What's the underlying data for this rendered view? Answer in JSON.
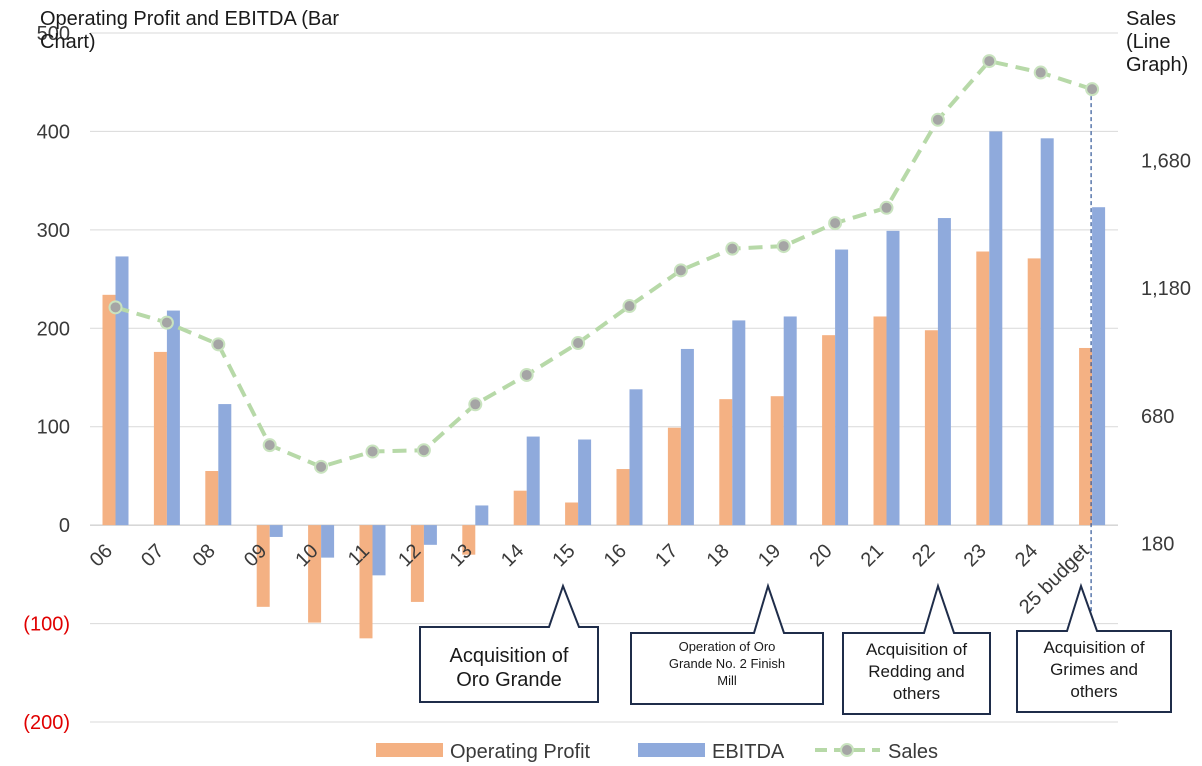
{
  "chart_data": {
    "type": "bar",
    "title_left": "Operating Profit and EBITDA (Bar Chart)",
    "title_right": "Sales (Line Graph)",
    "categories": [
      "06",
      "07",
      "08",
      "09",
      "10",
      "11",
      "12",
      "13",
      "14",
      "15",
      "16",
      "17",
      "18",
      "19",
      "20",
      "21",
      "22",
      "23",
      "24",
      "25 budget"
    ],
    "series": [
      {
        "name": "Operating Profit",
        "type": "bar",
        "color": "#f4b183",
        "values": [
          234,
          176,
          55,
          -83,
          -99,
          -115,
          -78,
          -30,
          35,
          23,
          57,
          99,
          128,
          131,
          193,
          212,
          198,
          278,
          271,
          180
        ]
      },
      {
        "name": "EBITDA",
        "type": "bar",
        "color": "#8faadc",
        "values": [
          273,
          218,
          123,
          -12,
          -33,
          -51,
          -20,
          20,
          90,
          87,
          138,
          179,
          208,
          212,
          280,
          299,
          312,
          400,
          393,
          323
        ]
      },
      {
        "name": "Sales",
        "type": "line",
        "color": "#b7d9a8",
        "marker_color": "#a5a5a5",
        "axis": "right",
        "values": [
          1105,
          1045,
          960,
          565,
          480,
          540,
          545,
          725,
          840,
          965,
          1110,
          1250,
          1335,
          1345,
          1435,
          1495,
          1840,
          2070,
          2025,
          1960
        ]
      }
    ],
    "left_axis": {
      "ylim": [
        -200,
        500
      ],
      "ticks": [
        500,
        400,
        300,
        200,
        100,
        0
      ],
      "tick_labels": [
        "500",
        "400",
        "300",
        "200",
        "100",
        "0"
      ],
      "negative_tick_labels": [
        "(100)",
        "(200)"
      ],
      "negative_color": "#e00000"
    },
    "right_axis": {
      "ylim": [
        -520,
        2180
      ],
      "ticks": [
        1680,
        1180,
        680,
        180
      ],
      "tick_labels": [
        "1,680",
        "1,180",
        "680",
        "180"
      ]
    },
    "grid": true,
    "legend_position": "bottom",
    "legend": [
      "Operating Profit",
      "EBITDA",
      "Sales"
    ],
    "annotations": [
      {
        "category": "15",
        "text_lines": [
          "Acquisition of",
          "Oro Grande"
        ]
      },
      {
        "category": "19",
        "text_lines": [
          "Operation of Oro",
          "Grande No. 2 Finish",
          "Mill"
        ]
      },
      {
        "category": "22",
        "text_lines": [
          "Acquisition of",
          "Redding and",
          "others"
        ]
      },
      {
        "category": "25 budget",
        "text_lines": [
          "Acquisition of",
          "Grimes and",
          "others"
        ]
      }
    ]
  }
}
